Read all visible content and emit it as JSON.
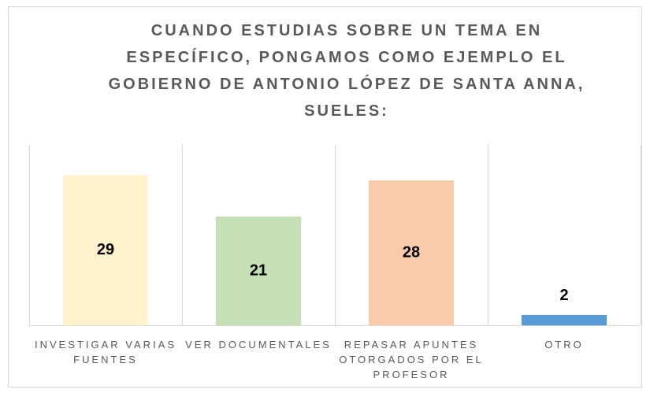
{
  "chart_data": {
    "type": "bar",
    "title": "CUANDO ESTUDIAS SOBRE UN TEMA EN ESPECÍFICO, PONGAMOS COMO EJEMPLO EL GOBIERNO DE ANTONIO LÓPEZ DE SANTA ANNA, SUELES:",
    "categories": [
      "INVESTIGAR VARIAS FUENTES",
      "VER DOCUMENTALES",
      "REPASAR APUNTES OTORGADOS POR EL PROFESOR",
      "OTRO"
    ],
    "values": [
      29,
      21,
      28,
      2
    ],
    "colors": [
      "#fff2cc",
      "#c5e0b4",
      "#f8cbad",
      "#5b9bd5"
    ],
    "ylim": [
      0,
      35
    ]
  }
}
